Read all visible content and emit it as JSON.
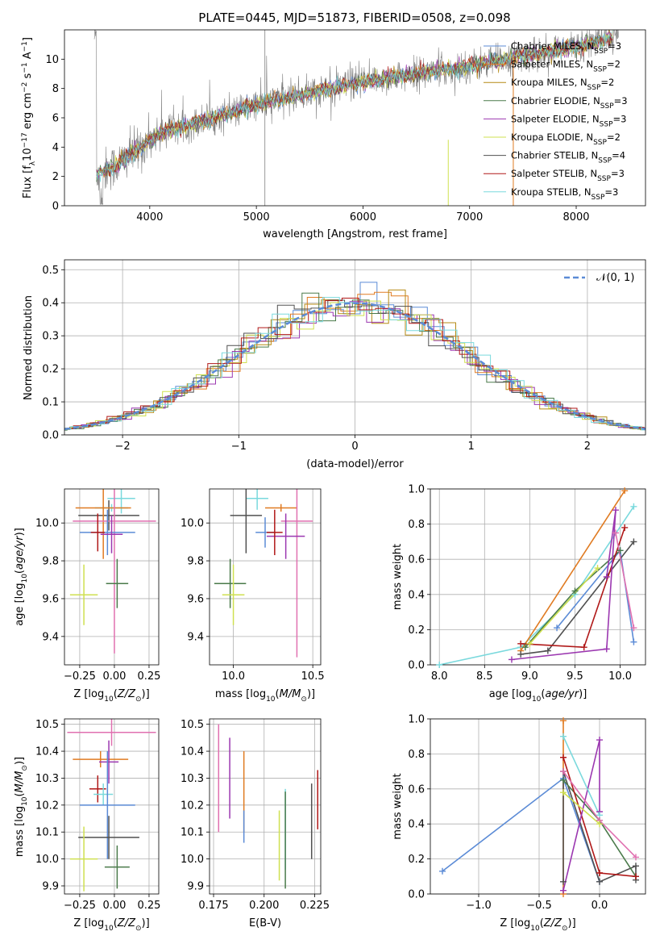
{
  "title": "PLATE=0445, MJD=51873, FIBERID=0508, z=0.098",
  "colors": {
    "data": "#808080",
    "series": [
      "#5b8bd6",
      "#e07b22",
      "#b58a14",
      "#4a7a4a",
      "#9b37b0",
      "#cfe050",
      "#505050",
      "#b01818",
      "#7ad9dd"
    ],
    "pink": "#e070b0",
    "gaussian": "#5b8bd6"
  },
  "chart_data": [
    {
      "id": "spectrum",
      "type": "line",
      "xlabel": "wavelength [Angstrom, rest frame]",
      "ylabel": "Flux [f_λ 10^-17 erg cm^-2 s^-1 A^-1]",
      "xlim": [
        3200,
        8650
      ],
      "ylim": [
        0,
        12
      ],
      "xticks": [
        4000,
        5000,
        6000,
        7000,
        8000
      ],
      "yticks": [
        0,
        2,
        4,
        6,
        8,
        10
      ],
      "grid": false,
      "legend_position": "right",
      "legend": [
        "Chabrier MILES, N_SSP=3",
        "Salpeter MILES, N_SSP=2",
        "Kroupa MILES, N_SSP=2",
        "Chabrier ELODIE, N_SSP=3",
        "Salpeter ELODIE, N_SSP=3",
        "Kroupa ELODIE, N_SSP=2",
        "Chabrier STELIB, N_SSP=4",
        "Salpeter STELIB, N_SSP=3",
        "Kroupa STELIB, N_SSP=3"
      ],
      "continuum": {
        "x": [
          3500,
          3700,
          3950,
          4100,
          4400,
          4800,
          5000,
          5300,
          5700,
          6000,
          6400,
          6800,
          7200,
          7500,
          7900,
          8200,
          8400
        ],
        "y": [
          2.2,
          2.8,
          4.2,
          5.0,
          5.6,
          6.4,
          6.9,
          7.4,
          8.0,
          8.4,
          8.9,
          9.3,
          9.8,
          10.2,
          10.7,
          11.2,
          11.6
        ]
      }
    },
    {
      "id": "residuals",
      "type": "line",
      "xlabel": "(data-model)/error",
      "ylabel": "Normed distribution",
      "xlim": [
        -2.5,
        2.5
      ],
      "ylim": [
        0,
        0.53
      ],
      "xticks": [
        -2,
        -1,
        0,
        1,
        2
      ],
      "yticks": [
        0.0,
        0.1,
        0.2,
        0.3,
        0.4,
        0.5
      ],
      "grid": true,
      "legend_position": "top-right",
      "legend": [
        "𝒩(0, 1)"
      ],
      "series": [
        {
          "name": "𝒩(0, 1)",
          "mean": 0,
          "sigma": 1,
          "style": "dashed"
        }
      ]
    },
    {
      "id": "z-age",
      "type": "scatter",
      "xlabel": "Z [log10(Z/Z⊙)]",
      "ylabel": "age [log10(age/yr)]",
      "xlim": [
        -0.36,
        0.32
      ],
      "ylim": [
        9.25,
        10.18
      ],
      "xticks": [
        -0.25,
        0.0,
        0.25
      ],
      "yticks": [
        9.4,
        9.6,
        9.8,
        10.0
      ],
      "grid": true,
      "points": [
        {
          "x": 0.05,
          "y": 10.13,
          "xerr": 0.1,
          "yerr": 0.08,
          "c": 8
        },
        {
          "x": -0.02,
          "y": 10.08,
          "xerr": 0.12,
          "yerr": 0.02,
          "c": 8
        },
        {
          "x": -0.04,
          "y": 10.04,
          "xerr": 0.22,
          "yerr": 0.08,
          "c": 6
        },
        {
          "x": -0.08,
          "y": 10.08,
          "xerr": 0.2,
          "yerr": 0.27,
          "c": 1
        },
        {
          "x": 0.0,
          "y": 10.01,
          "xerr": 0.3,
          "yerr": 0.7,
          "c": 9
        },
        {
          "x": -0.05,
          "y": 9.95,
          "xerr": 0.2,
          "yerr": 0.12,
          "c": 0
        },
        {
          "x": -0.02,
          "y": 9.94,
          "xerr": 0.08,
          "yerr": 0.1,
          "c": 4
        },
        {
          "x": -0.12,
          "y": 9.95,
          "xerr": 0.05,
          "yerr": 0.1,
          "c": 7
        },
        {
          "x": 0.02,
          "y": 9.68,
          "xerr": 0.08,
          "yerr": 0.13,
          "c": 3
        },
        {
          "x": -0.22,
          "y": 9.62,
          "xerr": 0.1,
          "yerr": 0.16,
          "c": 5
        }
      ]
    },
    {
      "id": "mass-age",
      "type": "scatter",
      "xlabel": "mass [log10(M/M⊙)]",
      "ylabel": "",
      "xlim": [
        9.85,
        10.55
      ],
      "ylim": [
        9.25,
        10.18
      ],
      "xticks": [
        10.0,
        10.5
      ],
      "yticks": [
        9.4,
        9.6,
        9.8,
        10.0
      ],
      "grid": true,
      "points": [
        {
          "x": 10.15,
          "y": 10.13,
          "xerr": 0.07,
          "yerr": 0.06,
          "c": 8
        },
        {
          "x": 10.3,
          "y": 10.08,
          "xerr": 0.1,
          "yerr": 0.02,
          "c": 1
        },
        {
          "x": 10.08,
          "y": 10.04,
          "xerr": 0.1,
          "yerr": 0.2,
          "c": 6
        },
        {
          "x": 10.2,
          "y": 9.95,
          "xerr": 0.06,
          "yerr": 0.08,
          "c": 0
        },
        {
          "x": 10.4,
          "y": 10.01,
          "xerr": 0.1,
          "yerr": 0.72,
          "c": 9
        },
        {
          "x": 10.33,
          "y": 9.93,
          "xerr": 0.12,
          "yerr": 0.12,
          "c": 4
        },
        {
          "x": 10.26,
          "y": 9.95,
          "xerr": 0.05,
          "yerr": 0.12,
          "c": 7
        },
        {
          "x": 9.98,
          "y": 9.68,
          "xerr": 0.1,
          "yerr": 0.13,
          "c": 3
        },
        {
          "x": 10.0,
          "y": 9.62,
          "xerr": 0.07,
          "yerr": 0.16,
          "c": 5
        }
      ]
    },
    {
      "id": "age-weight",
      "type": "line",
      "xlabel": "age [log10(age/yr)]",
      "ylabel": "mass weight",
      "xlim": [
        7.9,
        10.28
      ],
      "ylim": [
        0,
        1.0
      ],
      "xticks": [
        8.0,
        8.5,
        9.0,
        9.5,
        10.0
      ],
      "yticks": [
        0.0,
        0.2,
        0.4,
        0.6,
        0.8,
        1.0
      ],
      "grid": true,
      "series": [
        {
          "c": 8,
          "x": [
            8.0,
            8.9,
            9.5,
            10.15
          ],
          "y": [
            0.0,
            0.1,
            0.4,
            0.9
          ]
        },
        {
          "c": 1,
          "x": [
            8.9,
            10.05
          ],
          "y": [
            0.08,
            0.99
          ]
        },
        {
          "c": 0,
          "x": [
            9.3,
            10.0,
            10.15
          ],
          "y": [
            0.21,
            0.65,
            0.13
          ]
        },
        {
          "c": 6,
          "x": [
            8.9,
            9.2,
            10.15
          ],
          "y": [
            0.06,
            0.08,
            0.7
          ]
        },
        {
          "c": 3,
          "x": [
            8.95,
            9.5,
            10.0
          ],
          "y": [
            0.1,
            0.42,
            0.65
          ]
        },
        {
          "c": 7,
          "x": [
            8.9,
            9.6,
            10.05
          ],
          "y": [
            0.12,
            0.1,
            0.78
          ]
        },
        {
          "c": 4,
          "x": [
            8.8,
            9.85,
            9.95,
            9.85
          ],
          "y": [
            0.03,
            0.09,
            0.88,
            0.5
          ]
        },
        {
          "c": 9,
          "x": [
            9.95,
            10.15
          ],
          "y": [
            0.75,
            0.21
          ]
        },
        {
          "c": 5,
          "x": [
            9.0,
            9.75
          ],
          "y": [
            0.12,
            0.55
          ]
        }
      ]
    },
    {
      "id": "z-mass",
      "type": "scatter",
      "xlabel": "Z [log10(Z/Z⊙)]",
      "ylabel": "mass [log10(M/M⊙)]",
      "xlim": [
        -0.36,
        0.32
      ],
      "ylim": [
        9.87,
        10.52
      ],
      "xticks": [
        -0.25,
        0.0,
        0.25
      ],
      "yticks": [
        9.9,
        10.0,
        10.1,
        10.2,
        10.3,
        10.4,
        10.5
      ],
      "grid": true,
      "points": [
        {
          "x": -0.02,
          "y": 10.47,
          "xerr": 0.32,
          "yerr": 0.05,
          "c": 9
        },
        {
          "x": -0.1,
          "y": 10.37,
          "xerr": 0.2,
          "yerr": 0.03,
          "c": 1
        },
        {
          "x": -0.04,
          "y": 10.36,
          "xerr": 0.07,
          "yerr": 0.08,
          "c": 4
        },
        {
          "x": -0.12,
          "y": 10.26,
          "xerr": 0.06,
          "yerr": 0.05,
          "c": 7
        },
        {
          "x": -0.08,
          "y": 10.24,
          "xerr": 0.07,
          "yerr": 0.04,
          "c": 8
        },
        {
          "x": -0.05,
          "y": 10.2,
          "xerr": 0.2,
          "yerr": 0.2,
          "c": 0
        },
        {
          "x": -0.04,
          "y": 10.08,
          "xerr": 0.22,
          "yerr": 0.08,
          "c": 6
        },
        {
          "x": -0.22,
          "y": 10.0,
          "xerr": 0.1,
          "yerr": 0.12,
          "c": 5
        },
        {
          "x": 0.02,
          "y": 9.97,
          "xerr": 0.09,
          "yerr": 0.08,
          "c": 3
        }
      ]
    },
    {
      "id": "ebv-mass",
      "type": "scatter",
      "xlabel": "E(B-V)",
      "ylabel": "",
      "xlim": [
        0.173,
        0.228
      ],
      "ylim": [
        9.87,
        10.52
      ],
      "xticks": [
        0.175,
        0.2,
        0.225
      ],
      "tick_labels": [
        "0.175",
        "0.200",
        "0.225"
      ],
      "yticks": [
        9.9,
        10.0,
        10.1,
        10.2,
        10.3,
        10.4,
        10.5
      ],
      "grid": true,
      "points": [
        {
          "x": 0.1775,
          "y": 10.3,
          "yerr": 0.2,
          "c": 9
        },
        {
          "x": 0.183,
          "y": 10.3,
          "yerr": 0.15,
          "c": 4
        },
        {
          "x": 0.19,
          "y": 10.25,
          "yerr": 0.15,
          "c": 1
        },
        {
          "x": 0.19,
          "y": 10.12,
          "yerr": 0.06,
          "c": 0
        },
        {
          "x": 0.2075,
          "y": 10.05,
          "yerr": 0.13,
          "c": 5
        },
        {
          "x": 0.2105,
          "y": 10.11,
          "yerr": 0.15,
          "c": 8
        },
        {
          "x": 0.2105,
          "y": 10.07,
          "yerr": 0.18,
          "c": 3
        },
        {
          "x": 0.2235,
          "y": 10.14,
          "yerr": 0.14,
          "c": 6
        },
        {
          "x": 0.2265,
          "y": 10.22,
          "yerr": 0.11,
          "c": 7
        }
      ]
    },
    {
      "id": "z-weight",
      "type": "line",
      "xlabel": "Z [log10(Z/Z⊙)]",
      "ylabel": "mass weight",
      "xlim": [
        -1.4,
        0.38
      ],
      "ylim": [
        0,
        1.0
      ],
      "xticks": [
        -1.0,
        -0.5,
        0.0
      ],
      "yticks": [
        0.0,
        0.2,
        0.4,
        0.6,
        0.8,
        1.0
      ],
      "grid": true,
      "series": [
        {
          "c": 0,
          "x": [
            -1.3,
            -0.3,
            0.0
          ],
          "y": [
            0.13,
            0.66,
            0.07
          ]
        },
        {
          "c": 1,
          "x": [
            -0.3,
            -0.3
          ],
          "y": [
            0.99,
            0.0
          ]
        },
        {
          "c": 6,
          "x": [
            -0.3,
            -0.3,
            0.0,
            0.3,
            0.3
          ],
          "y": [
            0.07,
            0.7,
            0.07,
            0.16,
            0.08
          ]
        },
        {
          "c": 3,
          "x": [
            -0.3,
            0.0,
            0.3
          ],
          "y": [
            0.65,
            0.42,
            0.1
          ]
        },
        {
          "c": 7,
          "x": [
            -0.3,
            0.0,
            0.0,
            0.3
          ],
          "y": [
            0.78,
            0.12,
            0.12,
            0.1
          ]
        },
        {
          "c": 4,
          "x": [
            -0.3,
            0.0,
            0.0
          ],
          "y": [
            0.02,
            0.88,
            0.47
          ]
        },
        {
          "c": 8,
          "x": [
            -0.3,
            0.0
          ],
          "y": [
            0.9,
            0.45
          ]
        },
        {
          "c": 9,
          "x": [
            -0.3,
            0.0,
            0.3
          ],
          "y": [
            0.7,
            0.42,
            0.21
          ]
        },
        {
          "c": 5,
          "x": [
            -0.3,
            0.0
          ],
          "y": [
            0.58,
            0.4
          ]
        }
      ]
    }
  ]
}
